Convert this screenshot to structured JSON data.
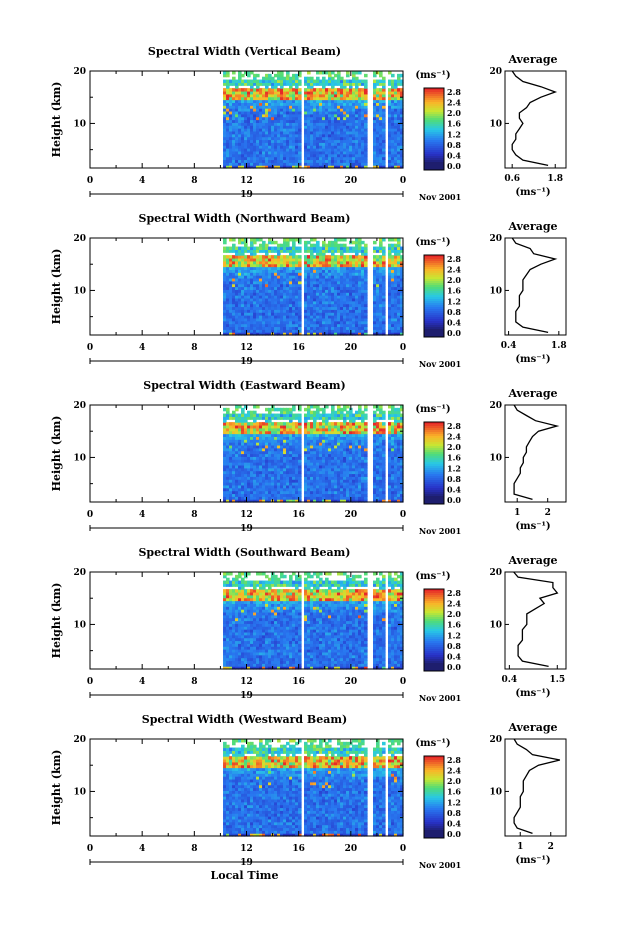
{
  "chart_data": {
    "type": "heatmap",
    "x_axis_label": "Local Time",
    "y_axis_label": "Height (km)",
    "date_label": "Nov 2001",
    "day_label": "19",
    "x_ticks": [
      "0",
      "4",
      "8",
      "12",
      "16",
      "20",
      "0"
    ],
    "xlim": [
      0,
      24
    ],
    "y_ticks": [
      "20",
      "10"
    ],
    "ylim": [
      1.5,
      20
    ],
    "colorbar_unit": "(ms⁻¹)",
    "colorbar_ticks": [
      "2.8",
      "2.4",
      "2.0",
      "1.6",
      "1.2",
      "0.8",
      "0.4",
      "0.0"
    ],
    "average_title": "Average",
    "average_xlabel": "(ms⁻¹)",
    "data_coverage": {
      "start_hour": 10.2,
      "gaps_hours": [
        [
          16.1,
          16.4
        ],
        [
          21.3,
          21.6
        ],
        [
          22.6,
          22.9
        ]
      ]
    },
    "panels": [
      {
        "title": "Spectral Width (Vertical Beam)",
        "avg_ticks": [
          "0.6",
          "1.8"
        ],
        "avg_xlim": [
          0.4,
          2.1
        ],
        "avg_profile": {
          "height": [
            2,
            3,
            4,
            5,
            6,
            7,
            8,
            9,
            10,
            11,
            12,
            13,
            14,
            15,
            16,
            17,
            18,
            19,
            20
          ],
          "value": [
            1.6,
            0.9,
            0.7,
            0.6,
            0.6,
            0.7,
            0.7,
            0.8,
            0.9,
            0.8,
            0.8,
            1.0,
            1.1,
            1.4,
            1.8,
            1.4,
            0.9,
            0.7,
            0.6
          ]
        }
      },
      {
        "title": "Spectral Width (Northward Beam)",
        "avg_ticks": [
          "0.4",
          "1.8"
        ],
        "avg_xlim": [
          0.3,
          2.0
        ],
        "avg_profile": {
          "height": [
            2,
            3,
            4,
            5,
            6,
            7,
            8,
            9,
            10,
            11,
            12,
            13,
            14,
            15,
            16,
            17,
            18,
            19,
            20
          ],
          "value": [
            1.5,
            0.8,
            0.6,
            0.6,
            0.6,
            0.7,
            0.7,
            0.7,
            0.8,
            0.8,
            0.8,
            0.9,
            1.0,
            1.3,
            1.7,
            1.1,
            1.0,
            0.6,
            0.5
          ]
        }
      },
      {
        "title": "Spectral Width (Eastward Beam)",
        "avg_ticks": [
          "1",
          "2"
        ],
        "avg_xlim": [
          0.6,
          2.6
        ],
        "avg_profile": {
          "height": [
            2,
            3,
            4,
            5,
            6,
            7,
            8,
            9,
            10,
            11,
            12,
            13,
            14,
            15,
            16,
            17,
            18,
            19,
            20
          ],
          "value": [
            1.5,
            0.9,
            0.9,
            0.9,
            1.0,
            1.1,
            1.1,
            1.2,
            1.2,
            1.3,
            1.3,
            1.4,
            1.5,
            1.7,
            2.3,
            1.6,
            1.3,
            1.0,
            0.9
          ]
        }
      },
      {
        "title": "Spectral Width (Southward Beam)",
        "avg_ticks": [
          "0.4",
          "1.5"
        ],
        "avg_xlim": [
          0.3,
          1.7
        ],
        "avg_profile": {
          "height": [
            2,
            3,
            4,
            5,
            6,
            7,
            8,
            9,
            10,
            11,
            12,
            13,
            14,
            15,
            16,
            17,
            18,
            19,
            20
          ],
          "value": [
            1.3,
            0.7,
            0.6,
            0.6,
            0.6,
            0.7,
            0.7,
            0.7,
            0.8,
            0.8,
            0.8,
            1.0,
            1.2,
            1.1,
            1.5,
            1.4,
            1.4,
            0.6,
            0.5
          ]
        }
      },
      {
        "title": "Spectral Width (Westward Beam)",
        "avg_ticks": [
          "1",
          "2"
        ],
        "avg_xlim": [
          0.5,
          2.5
        ],
        "avg_profile": {
          "height": [
            2,
            3,
            4,
            5,
            6,
            7,
            8,
            9,
            10,
            11,
            12,
            13,
            14,
            15,
            16,
            17,
            18,
            19,
            20
          ],
          "value": [
            1.4,
            0.9,
            0.8,
            0.8,
            0.9,
            1.0,
            1.0,
            1.0,
            1.1,
            1.1,
            1.1,
            1.2,
            1.3,
            1.6,
            2.3,
            1.4,
            1.2,
            0.9,
            0.8
          ]
        }
      }
    ]
  }
}
